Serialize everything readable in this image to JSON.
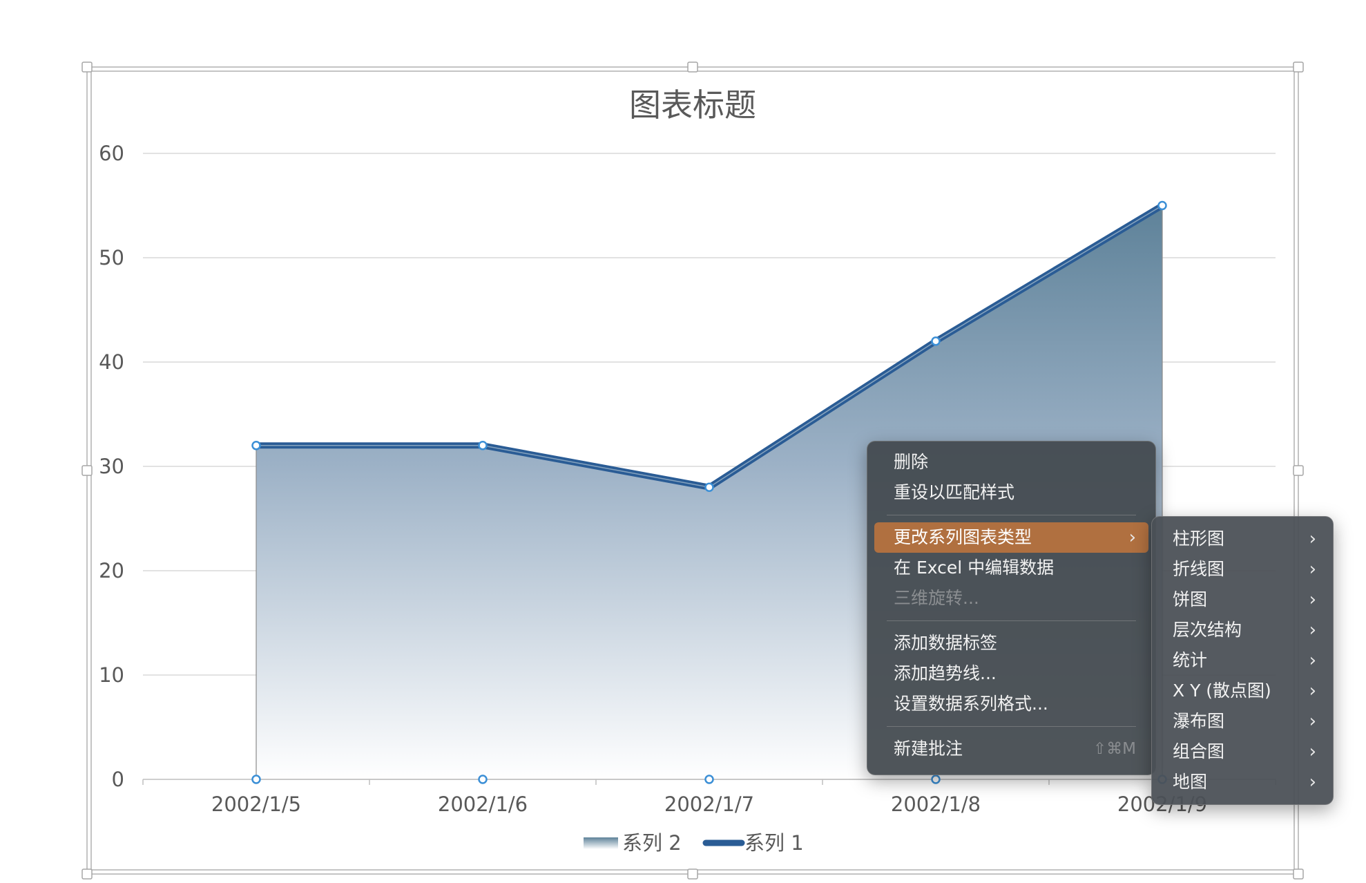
{
  "chart_data": {
    "type": "area",
    "title": "图表标题",
    "categories": [
      "2002/1/5",
      "2002/1/6",
      "2002/1/7",
      "2002/1/8",
      "2002/1/9"
    ],
    "series": [
      {
        "name": "系列 2",
        "kind": "area",
        "values": [
          32,
          32,
          28,
          42,
          55
        ]
      },
      {
        "name": "系列 1",
        "kind": "line",
        "values": [
          32,
          32,
          28,
          42,
          55
        ],
        "baseline_values": [
          0,
          0,
          0,
          0,
          0
        ]
      }
    ],
    "yticks": [
      "0",
      "10",
      "20",
      "30",
      "40",
      "50",
      "60"
    ],
    "ylim": [
      0,
      60
    ],
    "grid": true,
    "legend_position": "bottom",
    "colors": {
      "line": "#2a5c95",
      "area_top": "#5e8299",
      "area_bottom": "#ffffff",
      "grid": "#d9d9d9",
      "marker": "#3b8fd6"
    }
  },
  "context_menu": {
    "items": [
      {
        "label": "删除"
      },
      {
        "label": "重设以匹配样式"
      },
      {
        "label": "更改系列图表类型",
        "highlighted": true,
        "submenu": true
      },
      {
        "label": "在 Excel 中编辑数据"
      },
      {
        "label": "三维旋转...",
        "disabled": true
      },
      {
        "label": "添加数据标签"
      },
      {
        "label": "添加趋势线..."
      },
      {
        "label": "设置数据系列格式..."
      },
      {
        "label": "新建批注",
        "shortcut": "⇧⌘M"
      }
    ]
  },
  "submenu": {
    "items": [
      {
        "label": "柱形图"
      },
      {
        "label": "折线图"
      },
      {
        "label": "饼图"
      },
      {
        "label": "层次结构"
      },
      {
        "label": "统计"
      },
      {
        "label": "X Y (散点图)"
      },
      {
        "label": "瀑布图"
      },
      {
        "label": "组合图"
      },
      {
        "label": "地图"
      }
    ]
  }
}
